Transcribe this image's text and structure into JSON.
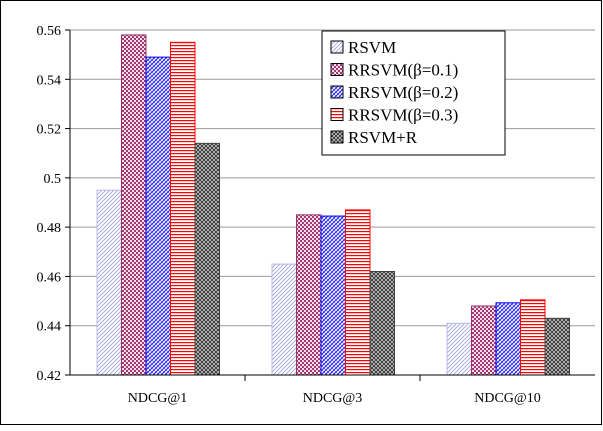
{
  "chart_data": {
    "type": "bar",
    "title": "",
    "xlabel": "",
    "ylabel": "",
    "categories": [
      "NDCG@1",
      "NDCG@3",
      "NDCG@10"
    ],
    "ylim": [
      0.42,
      0.56
    ],
    "yticks": [
      "0.42",
      "0.44",
      "0.46",
      "0.48",
      "0.5",
      "0.52",
      "0.54",
      "0.56"
    ],
    "grid": true,
    "legend_position": "top-right",
    "series": [
      {
        "name": "RSVM",
        "values": [
          0.495,
          0.465,
          0.441
        ],
        "color": "#b8b8e8",
        "pattern": "light-diagonal"
      },
      {
        "name": "RRSVM(β=0.1)",
        "values": [
          0.558,
          0.485,
          0.448
        ],
        "color": "#993366",
        "pattern": "dots-pink"
      },
      {
        "name": "RRSVM(β=0.2)",
        "values": [
          0.549,
          0.4845,
          0.4493
        ],
        "color": "#0000ff",
        "pattern": "blue-checker"
      },
      {
        "name": "RRSVM(β=0.3)",
        "values": [
          0.555,
          0.487,
          0.4505
        ],
        "color": "#ff0000",
        "pattern": "red-horizontal"
      },
      {
        "name": "RSVM+R",
        "values": [
          0.514,
          0.462,
          0.443
        ],
        "color": "#404040",
        "pattern": "dark-crosshatch"
      }
    ]
  }
}
